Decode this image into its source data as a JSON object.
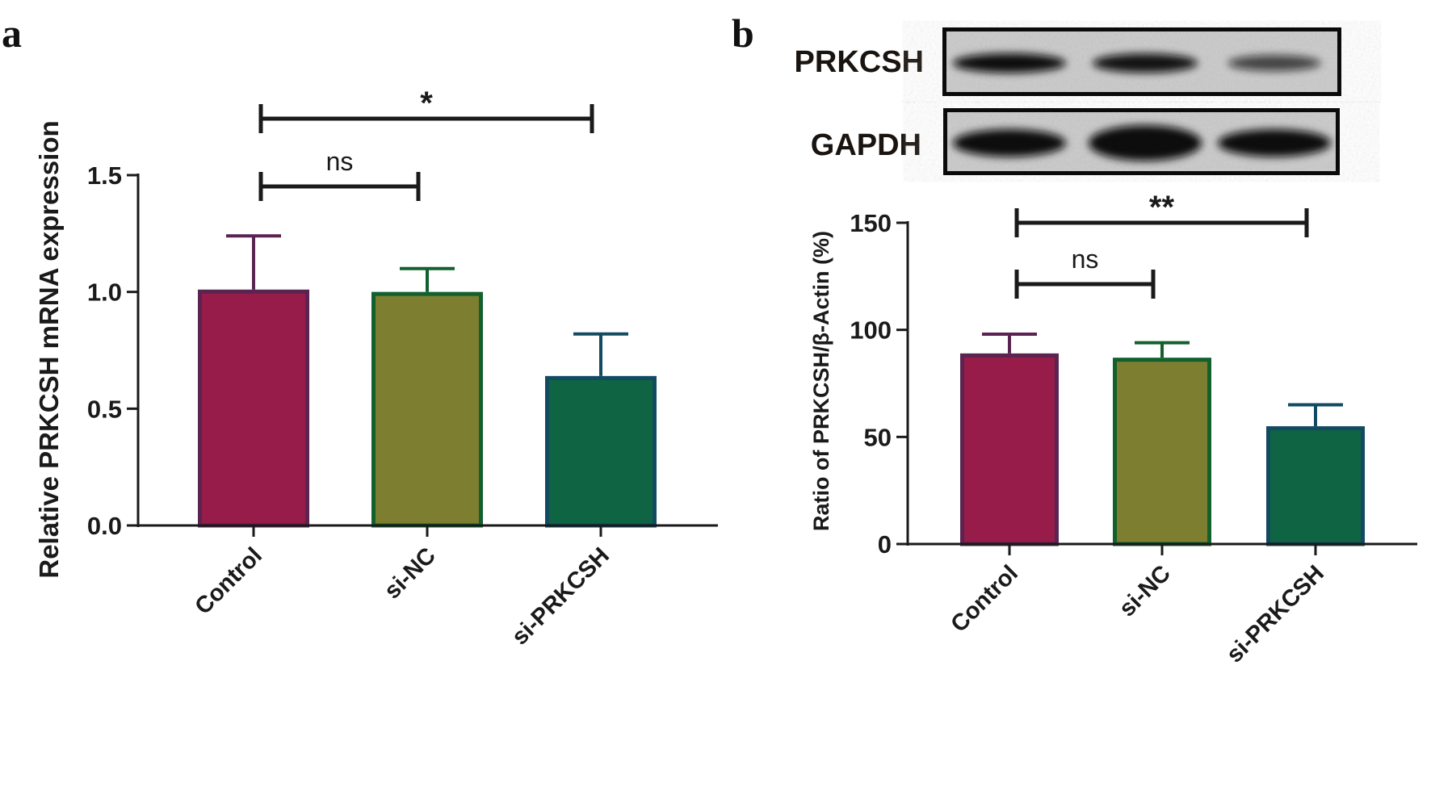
{
  "chart_data": [
    {
      "type": "bar",
      "panel_label": "a",
      "title": "",
      "xlabel": "",
      "ylabel": "Relative PRKCSH mRNA expression",
      "ylim": [
        0,
        1.5
      ],
      "yticks": [
        "0.0",
        "0.5",
        "1.0",
        "1.5"
      ],
      "ytick_values": [
        0,
        0.5,
        1.0,
        1.5
      ],
      "categories": [
        "Control",
        "si-NC",
        "si-PRKCSH"
      ],
      "values": [
        1.01,
        1.0,
        0.64
      ],
      "error_upper": [
        1.24,
        1.1,
        0.82
      ],
      "fill_colors": [
        "#971c4a",
        "#7d7e2f",
        "#0f6543"
      ],
      "edge_colors": [
        "#5a2350",
        "#12602e",
        "#124a62"
      ],
      "significance": [
        {
          "from": "Control",
          "to": "si-NC",
          "label": "ns"
        },
        {
          "from": "Control",
          "to": "si-PRKCSH",
          "label": "*"
        }
      ],
      "grid": false,
      "legend": "none"
    },
    {
      "type": "bar",
      "panel_label": "b",
      "title": "",
      "xlabel": "",
      "ylabel": "Ratio of PRKCSH/β-Actin (%)",
      "ylim": [
        0,
        150
      ],
      "yticks": [
        "0",
        "50",
        "100",
        "150"
      ],
      "ytick_values": [
        0,
        50,
        100,
        150
      ],
      "categories": [
        "Control",
        "si-NC",
        "si-PRKCSH"
      ],
      "values": [
        89,
        87,
        55
      ],
      "error_upper": [
        98,
        94,
        65
      ],
      "fill_colors": [
        "#971c4a",
        "#7d7e2f",
        "#0f6543"
      ],
      "edge_colors": [
        "#5a2350",
        "#12602e",
        "#124a62"
      ],
      "significance": [
        {
          "from": "Control",
          "to": "si-NC",
          "label": "ns"
        },
        {
          "from": "Control",
          "to": "si-PRKCSH",
          "label": "**"
        }
      ],
      "grid": false,
      "legend": "none"
    }
  ],
  "western_blot": {
    "rows": [
      {
        "label": "PRKCSH",
        "band_intensity": [
          1.0,
          0.95,
          0.55
        ]
      },
      {
        "label": "GAPDH",
        "band_intensity": [
          1.0,
          1.0,
          1.0
        ]
      }
    ]
  }
}
